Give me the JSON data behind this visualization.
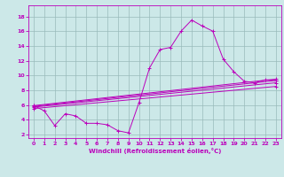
{
  "xlabel": "Windchill (Refroidissement éolien,°C)",
  "xlim": [
    -0.5,
    23.5
  ],
  "ylim": [
    1.5,
    19.5
  ],
  "xticks": [
    0,
    1,
    2,
    3,
    4,
    5,
    6,
    7,
    8,
    9,
    10,
    11,
    12,
    13,
    14,
    15,
    16,
    17,
    18,
    19,
    20,
    21,
    22,
    23
  ],
  "yticks": [
    2,
    4,
    6,
    8,
    10,
    12,
    14,
    16,
    18
  ],
  "bg_color": "#cce8e8",
  "line_color": "#bb00bb",
  "grid_color": "#99bbbb",
  "main_line": {
    "x": [
      0,
      1,
      2,
      3,
      4,
      5,
      6,
      7,
      8,
      9,
      10,
      11,
      12,
      13,
      14,
      15,
      16,
      17,
      18,
      19,
      20,
      21,
      22,
      23
    ],
    "y": [
      5.9,
      5.2,
      3.2,
      4.8,
      4.5,
      3.5,
      3.5,
      3.3,
      2.5,
      2.2,
      6.3,
      11.0,
      13.5,
      13.8,
      16.0,
      17.5,
      16.7,
      16.0,
      12.2,
      10.5,
      9.2,
      9.0,
      9.4,
      9.3
    ]
  },
  "linear_lines": [
    {
      "x": [
        0,
        23
      ],
      "y": [
        5.9,
        9.5
      ]
    },
    {
      "x": [
        0,
        23
      ],
      "y": [
        5.8,
        9.3
      ]
    },
    {
      "x": [
        0,
        23
      ],
      "y": [
        5.7,
        9.0
      ]
    },
    {
      "x": [
        0,
        23
      ],
      "y": [
        5.5,
        8.5
      ]
    }
  ]
}
